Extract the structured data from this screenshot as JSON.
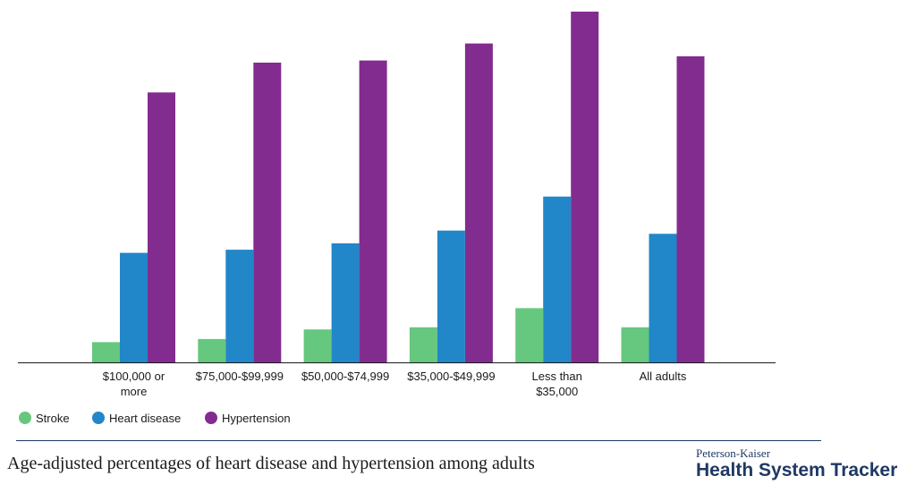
{
  "chart_data": {
    "type": "bar",
    "title": "Age-adjusted percentages of heart disease and hypertension among adults",
    "categories": [
      [
        "$100,000 or",
        "more"
      ],
      [
        "$75,000-$99,999"
      ],
      [
        "$50,000-$74,999"
      ],
      [
        "$35,000-$49,999"
      ],
      [
        "Less than",
        "$35,000"
      ],
      [
        "All adults"
      ]
    ],
    "series": [
      {
        "name": "Stroke",
        "color": "#66c77e",
        "values": [
          1.9,
          2.2,
          3.1,
          3.3,
          5.1,
          3.3
        ]
      },
      {
        "name": "Heart disease",
        "color": "#2187c9",
        "values": [
          10.3,
          10.6,
          11.2,
          12.4,
          15.6,
          12.1
        ]
      },
      {
        "name": "Hypertension",
        "color": "#832c8f",
        "values": [
          25.4,
          28.2,
          28.4,
          30.0,
          33.0,
          28.8
        ]
      }
    ],
    "xlabel": "",
    "ylabel": "",
    "ylim": [
      0,
      33
    ],
    "grid": false,
    "legend_position": "bottom-left"
  },
  "footer": {
    "title": "Age-adjusted percentages of heart disease and hypertension among adults",
    "brand_top": "Peterson-Kaiser",
    "brand_bottom": "Health System Tracker",
    "rule_color": "#1f3864"
  }
}
